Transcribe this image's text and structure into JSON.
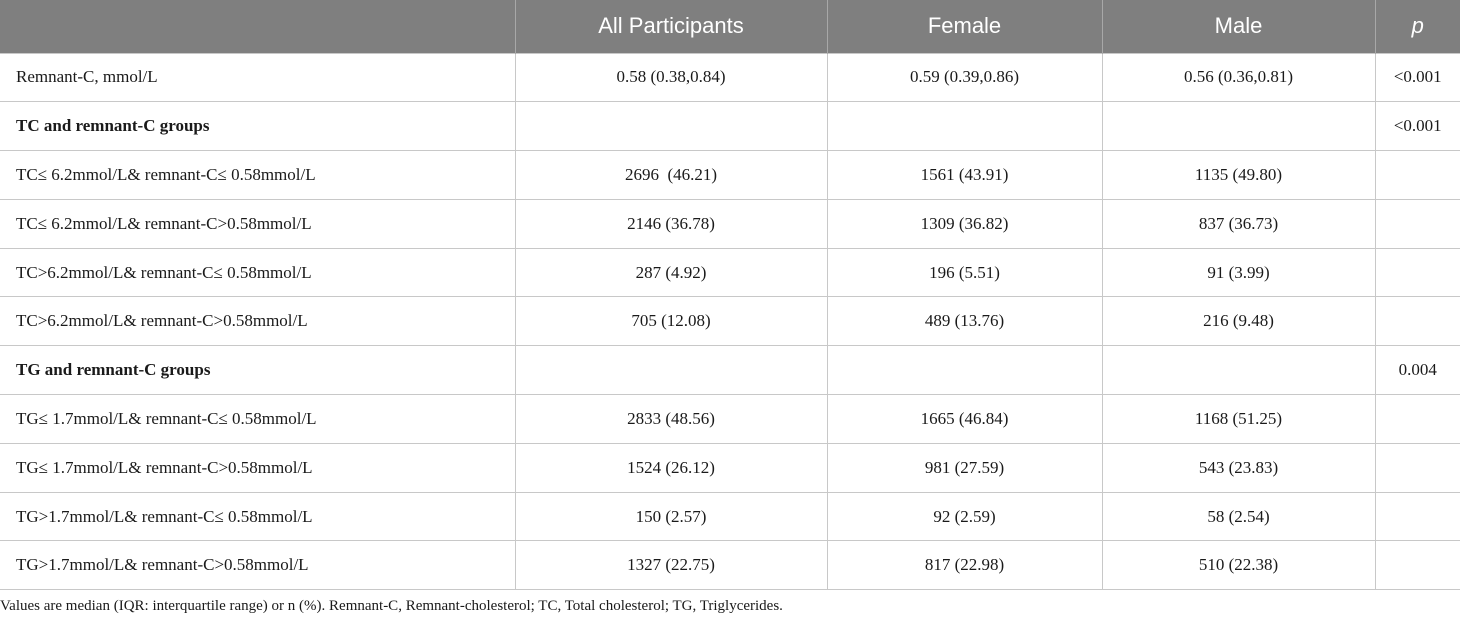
{
  "table": {
    "headers": [
      "",
      "All Participants",
      "Female",
      "Male",
      "p"
    ],
    "rows": [
      {
        "type": "data",
        "cells": [
          "Remnant-C, mmol/L",
          "0.58 (0.38,0.84)",
          "0.59 (0.39,0.86)",
          "0.56 (0.36,0.81)",
          "<0.001"
        ]
      },
      {
        "type": "group",
        "cells": [
          "TC and remnant-C groups",
          "",
          "",
          "",
          "<0.001"
        ]
      },
      {
        "type": "data",
        "cells": [
          "TC≤ 6.2mmol/L& remnant-C≤ 0.58mmol/L",
          "2696  (46.21)",
          "1561 (43.91)",
          "1135 (49.80)",
          ""
        ]
      },
      {
        "type": "data",
        "cells": [
          "TC≤ 6.2mmol/L& remnant-C>0.58mmol/L",
          "2146 (36.78)",
          "1309 (36.82)",
          "837 (36.73)",
          ""
        ]
      },
      {
        "type": "data",
        "cells": [
          "TC>6.2mmol/L& remnant-C≤ 0.58mmol/L",
          "287 (4.92)",
          "196 (5.51)",
          "91 (3.99)",
          ""
        ]
      },
      {
        "type": "data",
        "cells": [
          "TC>6.2mmol/L& remnant-C>0.58mmol/L",
          "705 (12.08)",
          "489 (13.76)",
          "216 (9.48)",
          ""
        ]
      },
      {
        "type": "group",
        "cells": [
          "TG and remnant-C groups",
          "",
          "",
          "",
          "0.004"
        ]
      },
      {
        "type": "data",
        "cells": [
          "TG≤ 1.7mmol/L& remnant-C≤ 0.58mmol/L",
          "2833 (48.56)",
          "1665 (46.84)",
          "1168 (51.25)",
          ""
        ]
      },
      {
        "type": "data",
        "cells": [
          "TG≤ 1.7mmol/L& remnant-C>0.58mmol/L",
          "1524 (26.12)",
          "981 (27.59)",
          "543 (23.83)",
          ""
        ]
      },
      {
        "type": "data",
        "cells": [
          "TG>1.7mmol/L& remnant-C≤ 0.58mmol/L",
          "150 (2.57)",
          "92 (2.59)",
          "58 (2.54)",
          ""
        ]
      },
      {
        "type": "data",
        "cells": [
          "TG>1.7mmol/L& remnant-C>0.58mmol/L",
          "1327 (22.75)",
          "817 (22.98)",
          "510 (22.38)",
          ""
        ]
      }
    ]
  },
  "footnote": "Values are median (IQR: interquartile range) or n (%). Remnant-C, Remnant-cholesterol; TC, Total cholesterol; TG, Triglycerides.",
  "colors": {
    "header_bg": "#7f7f7f",
    "header_text": "#ffffff",
    "grid_line": "#c8c8c8"
  }
}
